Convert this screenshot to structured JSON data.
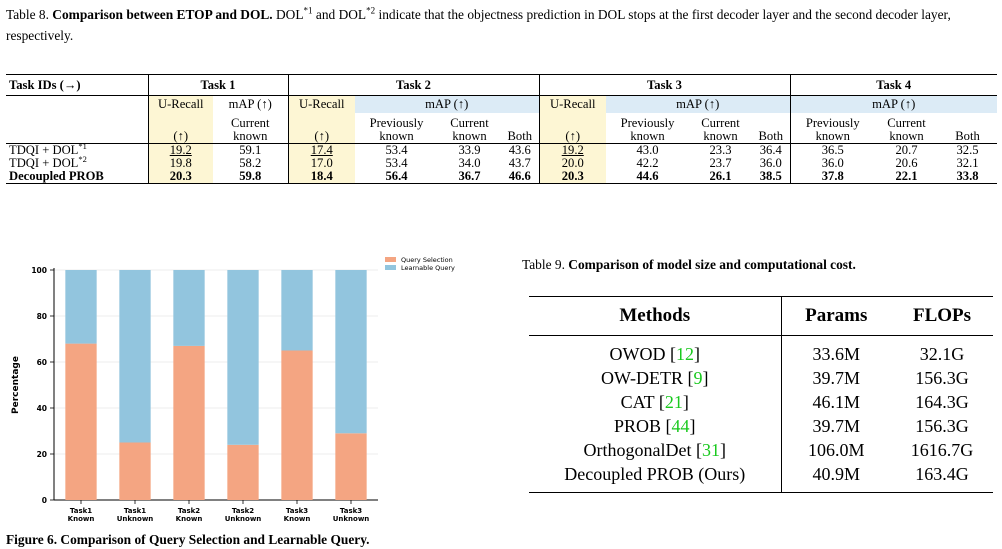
{
  "table8": {
    "caption_label": "Table 8.",
    "caption_title": "Comparison between ETOP and DOL.",
    "caption_rest_1": "DOL",
    "caption_sup_1": "*1",
    "caption_rest_2": "and DOL",
    "caption_sup_2": "*2",
    "caption_rest_3": "indicate that the objectness prediction in DOL stops at the first decoder layer and the second decoder layer, respectively.",
    "header_task_ids": "Task IDs (→)",
    "task_headers": [
      "Task 1",
      "Task 2",
      "Task 3",
      "Task 4"
    ],
    "u_recall": "U-Recall",
    "u_recall_arrow": "(↑)",
    "map_up": "mAP (↑)",
    "current_known": "Current known",
    "current": "Current",
    "known": "known",
    "previously": "Previously",
    "both": "Both",
    "rows": [
      {
        "method": "TDQI + DOL",
        "sup": "*1",
        "values": [
          "19.2",
          "59.1",
          "17.4",
          "53.4",
          "33.9",
          "43.6",
          "19.2",
          "43.0",
          "23.3",
          "36.4",
          "36.5",
          "20.7",
          "32.5"
        ]
      },
      {
        "method": "TDQI + DOL",
        "sup": "*2",
        "values": [
          "19.8",
          "58.2",
          "17.0",
          "53.4",
          "34.0",
          "43.7",
          "20.0",
          "42.2",
          "23.7",
          "36.0",
          "36.0",
          "20.6",
          "32.1"
        ]
      },
      {
        "method": "Decoupled PROB",
        "sup": "",
        "values": [
          "20.3",
          "59.8",
          "18.4",
          "56.4",
          "36.7",
          "46.6",
          "20.3",
          "44.6",
          "26.1",
          "38.5",
          "37.8",
          "22.1",
          "33.8"
        ]
      }
    ]
  },
  "chart_data": {
    "type": "bar",
    "stacked": true,
    "categories": [
      "Task1\nKnown",
      "Task1\nUnknown",
      "Task2\nKnown",
      "Task2\nUnknown",
      "Task3\nKnown",
      "Task3\nUnknown"
    ],
    "series": [
      {
        "name": "Query Selection",
        "values": [
          68,
          25,
          67,
          24,
          65,
          29
        ],
        "color": "#f4a582"
      },
      {
        "name": "Learnable Query",
        "values": [
          32,
          75,
          33,
          76,
          35,
          71
        ],
        "color": "#92c5de"
      }
    ],
    "ylabel": "Percentage",
    "yticks": [
      0,
      20,
      40,
      60,
      80,
      100
    ],
    "ylim": [
      0,
      100
    ],
    "grid": true,
    "legend": "top-right"
  },
  "bottom_caption": "Figure 6. Comparison of Query Selection and Learnable Query.",
  "table9": {
    "caption_label": "Table 9.",
    "caption_title": "Comparison of model size and computational cost.",
    "headers": [
      "Methods",
      "Params",
      "FLOPs"
    ],
    "rows": [
      {
        "method": "OWOD",
        "cite": "12",
        "params": "33.6M",
        "flops": "32.1G"
      },
      {
        "method": "OW-DETR",
        "cite": "9",
        "params": "39.7M",
        "flops": "156.3G"
      },
      {
        "method": "CAT",
        "cite": "21",
        "params": "46.1M",
        "flops": "164.3G"
      },
      {
        "method": "PROB",
        "cite": "44",
        "params": "39.7M",
        "flops": "156.3G"
      },
      {
        "method": "OrthogonalDet",
        "cite": "31",
        "params": "106.0M",
        "flops": "1616.7G"
      },
      {
        "method": "Decoupled PROB (Ours)",
        "cite": "",
        "params": "40.9M",
        "flops": "163.4G"
      }
    ]
  }
}
